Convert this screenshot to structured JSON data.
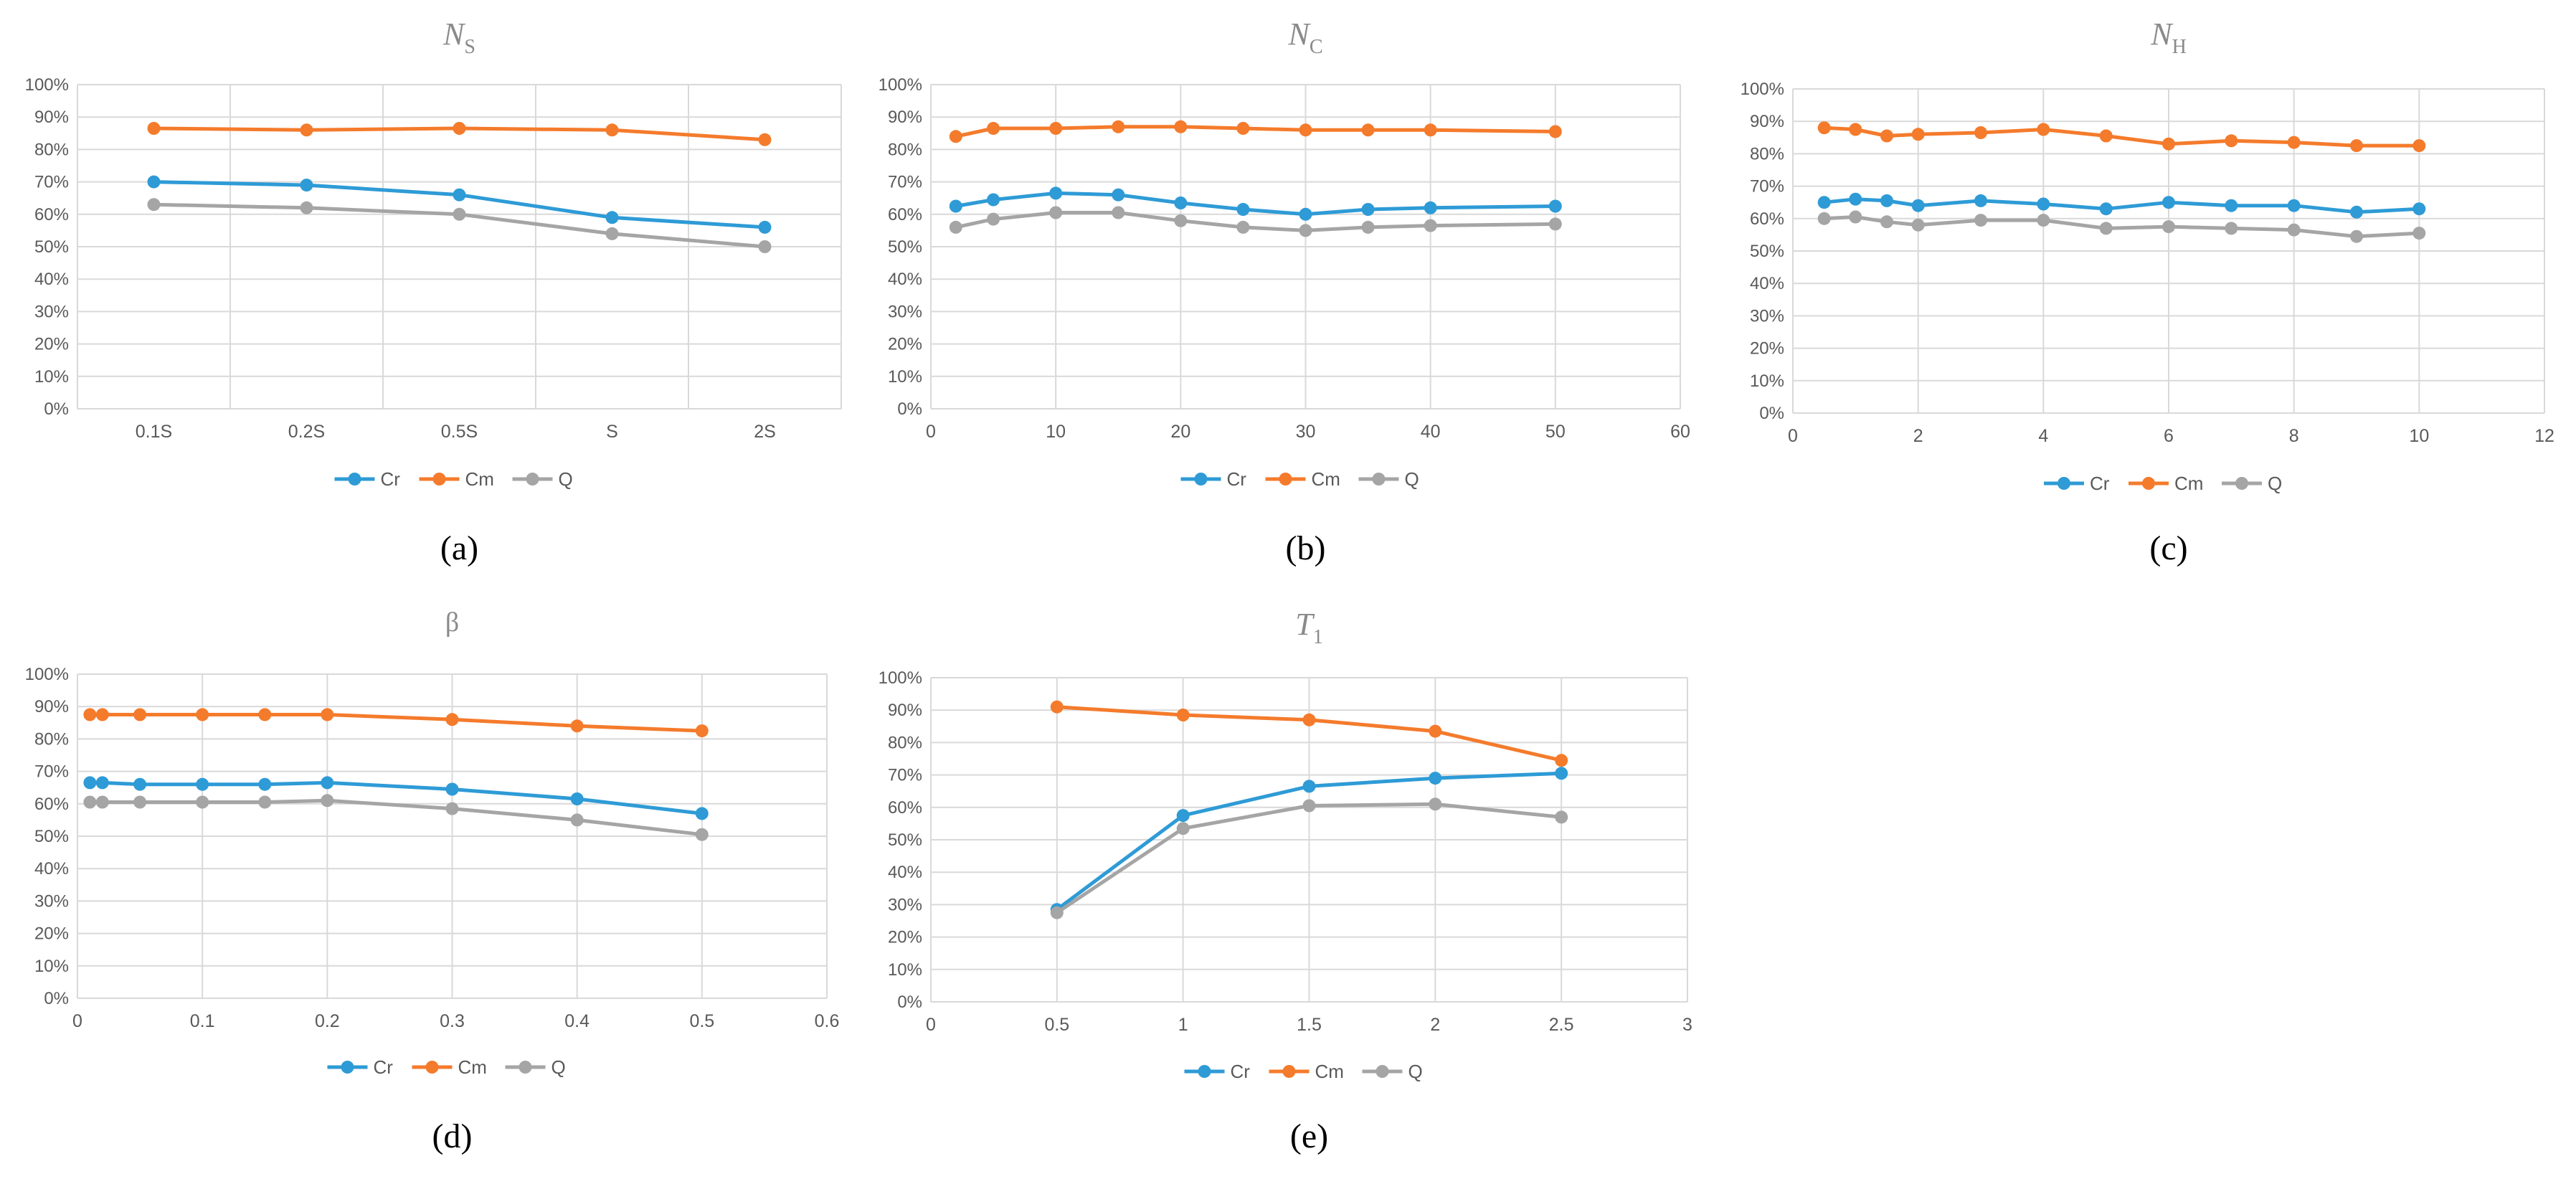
{
  "figure": {
    "panels_order": [
      "a",
      "b",
      "c",
      "d",
      "e"
    ]
  },
  "colors": {
    "Cr": "#2E9BD6",
    "Cm": "#F47B2C",
    "Q": "#A5A5A5",
    "grid": "#D9D9D9",
    "axis_text": "#595959",
    "title_text": "#8A8A8A"
  },
  "legend": [
    "Cr",
    "Cm",
    "Q"
  ],
  "chart_data": [
    {
      "id": "a",
      "type": "line",
      "title": "N",
      "title_sub": "S",
      "panel_label": "(a)",
      "x_kind": "category",
      "categories": [
        "0.1S",
        "0.2S",
        "0.5S",
        "S",
        "2S"
      ],
      "ylim": [
        0,
        100
      ],
      "yticks": [
        "0%",
        "10%",
        "20%",
        "30%",
        "40%",
        "50%",
        "60%",
        "70%",
        "80%",
        "90%",
        "100%"
      ],
      "series": [
        {
          "name": "Cr",
          "values": [
            70,
            69,
            66,
            59,
            56
          ]
        },
        {
          "name": "Cm",
          "values": [
            86.5,
            86,
            86.5,
            86,
            83
          ]
        },
        {
          "name": "Q",
          "values": [
            63,
            62,
            60,
            54,
            50
          ]
        }
      ]
    },
    {
      "id": "b",
      "type": "line",
      "title": "N",
      "title_sub": "C",
      "panel_label": "(b)",
      "x_kind": "numeric",
      "xlim": [
        0,
        60
      ],
      "xticks": [
        0,
        10,
        20,
        30,
        40,
        50,
        60
      ],
      "x": [
        2,
        5,
        10,
        15,
        20,
        25,
        30,
        35,
        40,
        50
      ],
      "ylim": [
        0,
        100
      ],
      "yticks": [
        "0%",
        "10%",
        "20%",
        "30%",
        "40%",
        "50%",
        "60%",
        "70%",
        "80%",
        "90%",
        "100%"
      ],
      "series": [
        {
          "name": "Cr",
          "values": [
            62.5,
            64.5,
            66.5,
            66,
            63.5,
            61.5,
            60,
            61.5,
            62,
            62.5
          ]
        },
        {
          "name": "Cm",
          "values": [
            84,
            86.5,
            86.5,
            87,
            87,
            86.5,
            86,
            86,
            86,
            85.5
          ]
        },
        {
          "name": "Q",
          "values": [
            56,
            58.5,
            60.5,
            60.5,
            58,
            56,
            55,
            56,
            56.5,
            57
          ]
        }
      ]
    },
    {
      "id": "c",
      "type": "line",
      "title": "N",
      "title_sub": "H",
      "panel_label": "(c)",
      "x_kind": "numeric",
      "xlim": [
        0,
        12
      ],
      "xticks": [
        0,
        2,
        4,
        6,
        8,
        10,
        12
      ],
      "x": [
        0.5,
        1,
        1.5,
        2,
        3,
        4,
        5,
        6,
        7,
        8,
        9,
        10
      ],
      "ylim": [
        0,
        100
      ],
      "yticks": [
        "0%",
        "10%",
        "20%",
        "30%",
        "40%",
        "50%",
        "60%",
        "70%",
        "80%",
        "90%",
        "100%"
      ],
      "series": [
        {
          "name": "Cr",
          "values": [
            65,
            66,
            65.5,
            64,
            65.5,
            64.5,
            63,
            65,
            64,
            64,
            62,
            63
          ]
        },
        {
          "name": "Cm",
          "values": [
            88,
            87.5,
            85.5,
            86,
            86.5,
            87.5,
            85.5,
            83,
            84,
            83.5,
            82.5,
            82.5
          ]
        },
        {
          "name": "Q",
          "values": [
            60,
            60.5,
            59,
            58,
            59.5,
            59.5,
            57,
            57.5,
            57,
            56.5,
            54.5,
            55.5
          ]
        }
      ]
    },
    {
      "id": "d",
      "type": "line",
      "title": "β",
      "title_sub": "",
      "panel_label": "(d)",
      "x_kind": "numeric",
      "xlim": [
        0,
        0.6
      ],
      "xticks": [
        0,
        0.1,
        0.2,
        0.3,
        0.4,
        0.5,
        0.6
      ],
      "x": [
        0.01,
        0.02,
        0.05,
        0.1,
        0.15,
        0.2,
        0.3,
        0.4,
        0.5
      ],
      "ylim": [
        0,
        100
      ],
      "yticks": [
        "0%",
        "10%",
        "20%",
        "30%",
        "40%",
        "50%",
        "60%",
        "70%",
        "80%",
        "90%",
        "100%"
      ],
      "series": [
        {
          "name": "Cr",
          "values": [
            66.5,
            66.5,
            66,
            66,
            66,
            66.5,
            64.5,
            61.5,
            57
          ]
        },
        {
          "name": "Cm",
          "values": [
            87.5,
            87.5,
            87.5,
            87.5,
            87.5,
            87.5,
            86,
            84,
            82.5
          ]
        },
        {
          "name": "Q",
          "values": [
            60.5,
            60.5,
            60.5,
            60.5,
            60.5,
            61,
            58.5,
            55,
            50.5
          ]
        }
      ]
    },
    {
      "id": "e",
      "type": "line",
      "title": "T",
      "title_sub": "1",
      "panel_label": "(e)",
      "x_kind": "numeric",
      "xlim": [
        0,
        3
      ],
      "xticks": [
        0,
        0.5,
        1,
        1.5,
        2,
        2.5,
        3
      ],
      "x": [
        0.5,
        1,
        1.5,
        2,
        2.5
      ],
      "ylim": [
        0,
        100
      ],
      "yticks": [
        "0%",
        "10%",
        "20%",
        "30%",
        "40%",
        "50%",
        "60%",
        "70%",
        "80%",
        "90%",
        "100%"
      ],
      "series": [
        {
          "name": "Cr",
          "values": [
            28.5,
            57.5,
            66.5,
            69,
            70.5
          ]
        },
        {
          "name": "Cm",
          "values": [
            91,
            88.5,
            87,
            83.5,
            74.5
          ]
        },
        {
          "name": "Q",
          "values": [
            27.5,
            53.5,
            60.5,
            61,
            57
          ]
        }
      ]
    }
  ]
}
